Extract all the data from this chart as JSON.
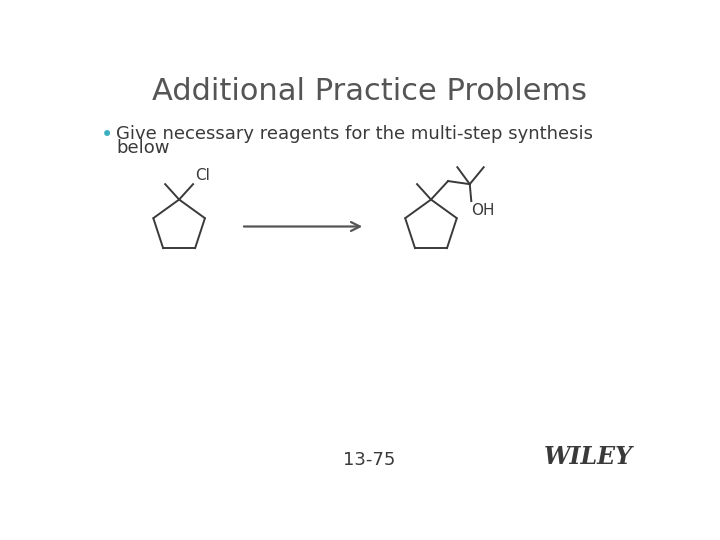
{
  "title": "Additional Practice Problems",
  "title_color": "#555555",
  "title_fontsize": 22,
  "title_font": "DejaVu Sans",
  "bullet_color": "#3ab0c0",
  "bullet_text_line1": "Give necessary reagents for the multi-step synthesis",
  "bullet_text_line2": "below",
  "bullet_fontsize": 13,
  "page_number": "13-75",
  "wiley_text": "WILEY",
  "background_color": "#ffffff",
  "line_color": "#3a3a3a",
  "text_color": "#3a3a3a",
  "arrow_color": "#555555"
}
